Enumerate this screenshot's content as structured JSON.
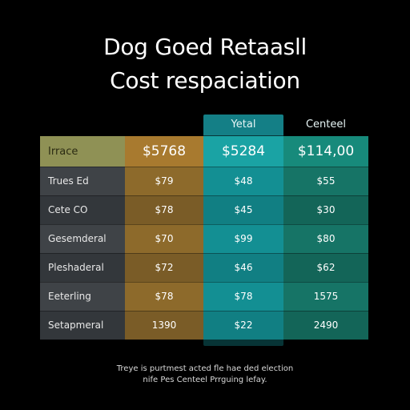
{
  "title": {
    "line1": "Dog Goed Retaasll",
    "line2": "Cost respaciation"
  },
  "column_headers": {
    "col2": "Yetal",
    "col3": "Centeel"
  },
  "table": {
    "header": {
      "label": "Irrace",
      "values": [
        "$5768",
        "$5284",
        "$114,00"
      ]
    },
    "rows": [
      {
        "label": "Trues Ed",
        "values": [
          "$79",
          "$48",
          "$55"
        ]
      },
      {
        "label": "Cete CO",
        "values": [
          "$78",
          "$45",
          "$30"
        ]
      },
      {
        "label": "Gesemderal",
        "values": [
          "$70",
          "$99",
          "$80"
        ]
      },
      {
        "label": "Pleshaderal",
        "values": [
          "$72",
          "$46",
          "$62"
        ]
      },
      {
        "label": "Eeterling",
        "values": [
          "$78",
          "$78",
          "1575"
        ]
      },
      {
        "label": "Setapmeral",
        "values": [
          "1390",
          "$22",
          "2490"
        ]
      }
    ]
  },
  "footnote": {
    "line1": "Treye is purtmest acted fle hae ded election",
    "line2": "nife Pes Centeel Prrguing lefay."
  },
  "colors": {
    "background": "#000000",
    "col_label": "#3f4347",
    "col_gold": "#8d6a2b",
    "col_teal_highlight": "#138f93",
    "col_green": "#167466",
    "header_olive": "#8f9155"
  }
}
